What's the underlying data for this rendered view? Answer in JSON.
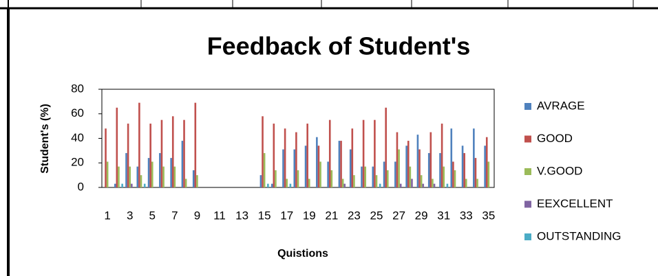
{
  "chart_data": {
    "type": "bar",
    "title": "Feedback of Student's",
    "y_label": "Student's (%)",
    "x_label": "Quistions",
    "categories": [
      "1",
      null,
      "3",
      null,
      "5",
      null,
      "7",
      null,
      "9",
      null,
      "11",
      null,
      "13",
      null,
      "15",
      null,
      "17",
      null,
      "19",
      null,
      "21",
      null,
      "23",
      null,
      "25",
      null,
      "27",
      null,
      "29",
      null,
      "31",
      null,
      "33",
      null,
      "35"
    ],
    "series": [
      {
        "name": "AVRAGE",
        "color": "#4f81bd",
        "values": [
          0,
          3,
          28,
          17,
          24,
          28,
          24,
          38,
          14,
          0,
          0,
          0,
          0,
          0,
          10,
          3,
          31,
          31,
          34,
          41,
          21,
          38,
          31,
          17,
          17,
          21,
          21,
          34,
          43,
          28,
          28,
          48,
          34,
          48,
          34
        ]
      },
      {
        "name": "GOOD",
        "color": "#c0504d",
        "values": [
          48,
          65,
          52,
          69,
          52,
          55,
          58,
          55,
          69,
          0,
          0,
          0,
          0,
          0,
          58,
          52,
          48,
          45,
          52,
          34,
          55,
          38,
          48,
          55,
          55,
          65,
          45,
          38,
          31,
          45,
          52,
          21,
          28,
          24,
          41
        ]
      },
      {
        "name": "V.GOOD",
        "color": "#9bbb59",
        "values": [
          21,
          17,
          17,
          10,
          21,
          17,
          17,
          7,
          10,
          0,
          0,
          0,
          0,
          0,
          28,
          14,
          7,
          14,
          7,
          21,
          14,
          7,
          10,
          17,
          10,
          14,
          31,
          17,
          10,
          7,
          17,
          14,
          7,
          7,
          21
        ]
      },
      {
        "name": "EEXCELLENT",
        "color": "#8064a2",
        "values": [
          0,
          0,
          3,
          0,
          0,
          0,
          0,
          0,
          0,
          0,
          0,
          0,
          0,
          0,
          0,
          0,
          0,
          0,
          0,
          0,
          0,
          3,
          0,
          0,
          0,
          0,
          3,
          7,
          3,
          3,
          0,
          0,
          0,
          0,
          0
        ]
      },
      {
        "name": "OUTSTANDING",
        "color": "#4bacc6",
        "values": [
          0,
          3,
          0,
          3,
          0,
          0,
          0,
          0,
          0,
          0,
          0,
          0,
          0,
          0,
          3,
          0,
          3,
          0,
          0,
          0,
          0,
          0,
          0,
          0,
          3,
          0,
          0,
          0,
          0,
          0,
          3,
          0,
          0,
          0,
          0
        ]
      }
    ],
    "ylim": [
      0,
      80
    ],
    "yticks": [
      0,
      20,
      40,
      60,
      80
    ],
    "grid": false,
    "legend": "right"
  }
}
